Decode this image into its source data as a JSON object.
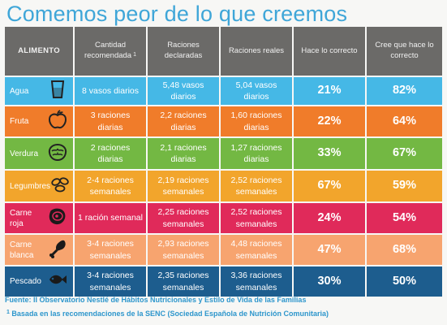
{
  "title": "Comemos peor de lo que creemos",
  "headers": {
    "food": "ALIMENTO",
    "recommended": "Cantidad recomendada",
    "recommended_sup": "1",
    "declared": "Raciones declaradas",
    "real": "Raciones reales",
    "correct": "Hace lo correcto",
    "believes": "Cree que hace lo correcto"
  },
  "rows": [
    {
      "food": "Agua",
      "icon": "glass-icon",
      "color": "#45b8e6",
      "recommended": "8 vasos diarios",
      "declared": "5,48 vasos diarios",
      "real": "5,04 vasos diarios",
      "correct": "21%",
      "believes": "82%"
    },
    {
      "food": "Fruta",
      "icon": "apple-icon",
      "color": "#f07c2a",
      "recommended": "3 raciones diarias",
      "declared": "2,2 raciones diarias",
      "real": "1,60 raciones diarias",
      "correct": "22%",
      "believes": "64%"
    },
    {
      "food": "Verdura",
      "icon": "lettuce-icon",
      "color": "#73b843",
      "recommended": "2 raciones diarias",
      "declared": "2,1 raciones diarias",
      "real": "1,27 raciones diarias",
      "correct": "33%",
      "believes": "67%"
    },
    {
      "food": "Legumbres",
      "icon": "beans-icon",
      "color": "#f2a52c",
      "recommended": "2-4 raciones semanales",
      "declared": "2,19 raciones semanales",
      "real": "2,52 raciones semanales",
      "correct": "67%",
      "believes": "59%"
    },
    {
      "food": "Carne roja",
      "icon": "steak-icon",
      "color": "#e02a5a",
      "recommended": "1 ración semanal",
      "declared": "2,25 raciones semanales",
      "real": "2,52 raciones semanales",
      "correct": "24%",
      "believes": "54%"
    },
    {
      "food": "Carne blanca",
      "icon": "chicken-leg-icon",
      "color": "#f7a46f",
      "recommended": "3-4 raciones semanales",
      "declared": "2,93 raciones semanales",
      "real": "4,48 raciones semanales",
      "correct": "47%",
      "believes": "68%"
    },
    {
      "food": "Pescado",
      "icon": "fish-icon",
      "color": "#1d5d8e",
      "recommended": "3-4 raciones semanales",
      "declared": "2,35 raciones semanales",
      "real": "3,36 raciones semanales",
      "correct": "30%",
      "believes": "50%"
    }
  ],
  "footer": {
    "source": "Fuente: II Observatorio Nestlé de Hábitos Nutricionales y Estilo de Vida de las Familias",
    "note_sup": "1",
    "note": "Basada en las recomendaciones de la SENC (Sociedad Española de Nutrición Comunitaria)"
  }
}
